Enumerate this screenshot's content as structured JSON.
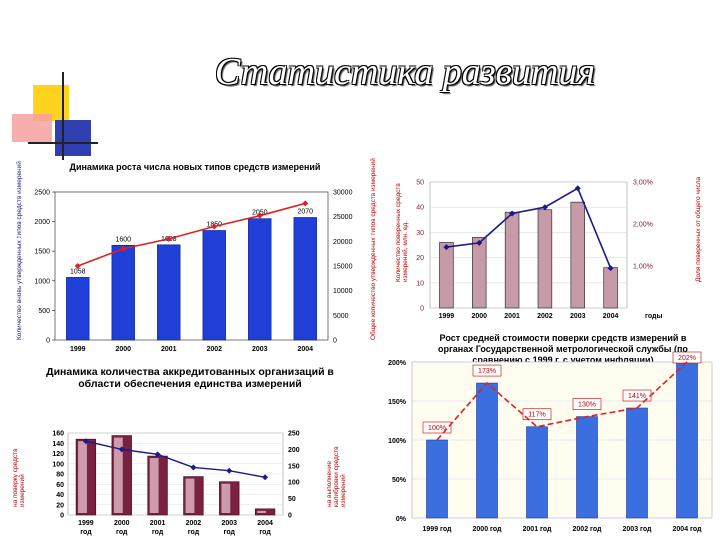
{
  "slide": {
    "title": "Статистика развития"
  },
  "colors": {
    "bar_blue": "#1f3fd6",
    "line_red": "#e02020",
    "line_navy": "#1a1a8a",
    "bar_mauve": "#c79aa8",
    "bar_maroon": "#7a2040",
    "deco_yellow": "#ffd21f",
    "deco_blue": "#2f3fb0",
    "deco_pink": "#f5a0a0"
  },
  "chart_data": [
    {
      "id": "chart1",
      "type": "bar",
      "title": "Динамика роста числа новых типов средств измерений",
      "categories": [
        "1999",
        "2000",
        "2001",
        "2002",
        "2003",
        "2004"
      ],
      "series": [
        {
          "name": "Количество вновь утвержденных типов средств измерений",
          "axis": "left",
          "values": [
            1058,
            1600,
            1608,
            1850,
            2050,
            2070
          ]
        },
        {
          "axis": "right",
          "type": "line",
          "values": [
            15000,
            18500,
            20500,
            23000,
            25200,
            27700
          ]
        }
      ],
      "bar_labels": [
        "1058",
        "1600",
        "1608",
        "1850",
        "2050",
        "2070"
      ],
      "ylim": [
        0,
        2500
      ],
      "y2lim": [
        0,
        30000
      ],
      "yticks": [
        "0",
        "500",
        "1000",
        "1500",
        "2000",
        "2500"
      ],
      "y2ticks": [
        "0",
        "5000",
        "10000",
        "15000",
        "20000",
        "25000",
        "30000"
      ],
      "ylabel": "Количество вновь утвержденных типов средств измерений",
      "y2label": "Общее количество утвержденных типов средств измерений"
    },
    {
      "id": "chart2",
      "type": "bar",
      "categories": [
        "1999",
        "2000",
        "2001",
        "2002",
        "2003",
        "2004"
      ],
      "x_suffix": "годы",
      "series": [
        {
          "name": "Количество поверенных средств измерений, млн. ед.",
          "axis": "left",
          "values": [
            26,
            28,
            38,
            39,
            42,
            16
          ]
        },
        {
          "name": "Доля поверенных от общего числа",
          "axis": "right",
          "type": "line",
          "values": [
            1.45,
            1.55,
            2.25,
            2.4,
            2.85,
            0.95
          ]
        }
      ],
      "ylim": [
        0,
        50
      ],
      "y2lim": [
        0,
        3
      ],
      "yticks": [
        "0",
        "10",
        "20",
        "30",
        "40",
        "50"
      ],
      "y2ticks": [
        "1,00%",
        "2,00%",
        "3,00%"
      ],
      "ylabel": "Количество поверенных средств измерений, млн. ед.",
      "y2label": "Доля поверенных от общего числа"
    },
    {
      "id": "chart3",
      "type": "bar",
      "title": "Рост средней стоимости поверки средств измерений в органах Государственной метрологической службы (по сравнению с 1999 г. с учетом инфляции)",
      "categories": [
        "1999 год",
        "2000 год",
        "2001 год",
        "2002 год",
        "2003 год",
        "2004 год"
      ],
      "values": [
        100,
        173,
        117,
        130,
        141,
        202
      ],
      "bar_labels": [
        "100%",
        "173%",
        "117%",
        "130%",
        "141%",
        "202%"
      ],
      "ylim": [
        0,
        200
      ],
      "yticks": [
        "0%",
        "50%",
        "100%",
        "150%",
        "200%"
      ]
    },
    {
      "id": "chart4",
      "type": "bar",
      "title": "Динамика количества аккредитованных организаций в области обеспечения единства измерений",
      "categories": [
        "1999 год",
        "2000 год",
        "2001 год",
        "2002 год",
        "2003 год",
        "2004 год"
      ],
      "series": [
        {
          "name": "на поверку средств измерений",
          "axis": "left",
          "values": [
            148,
            155,
            115,
            75,
            65,
            12
          ]
        },
        {
          "name": "на выполнение калибровки средств измерений",
          "axis": "right",
          "type": "line",
          "values": [
            225,
            200,
            185,
            145,
            135,
            115
          ]
        }
      ],
      "ylim": [
        0,
        160
      ],
      "y2lim": [
        0,
        250
      ],
      "yticks": [
        "0",
        "20",
        "40",
        "60",
        "80",
        "100",
        "120",
        "140",
        "160"
      ],
      "y2ticks": [
        "0",
        "50",
        "100",
        "150",
        "200",
        "250"
      ],
      "ylabel": "на поверку средств измерений",
      "y2label": "на выполнение калибровки средств измерений"
    }
  ]
}
